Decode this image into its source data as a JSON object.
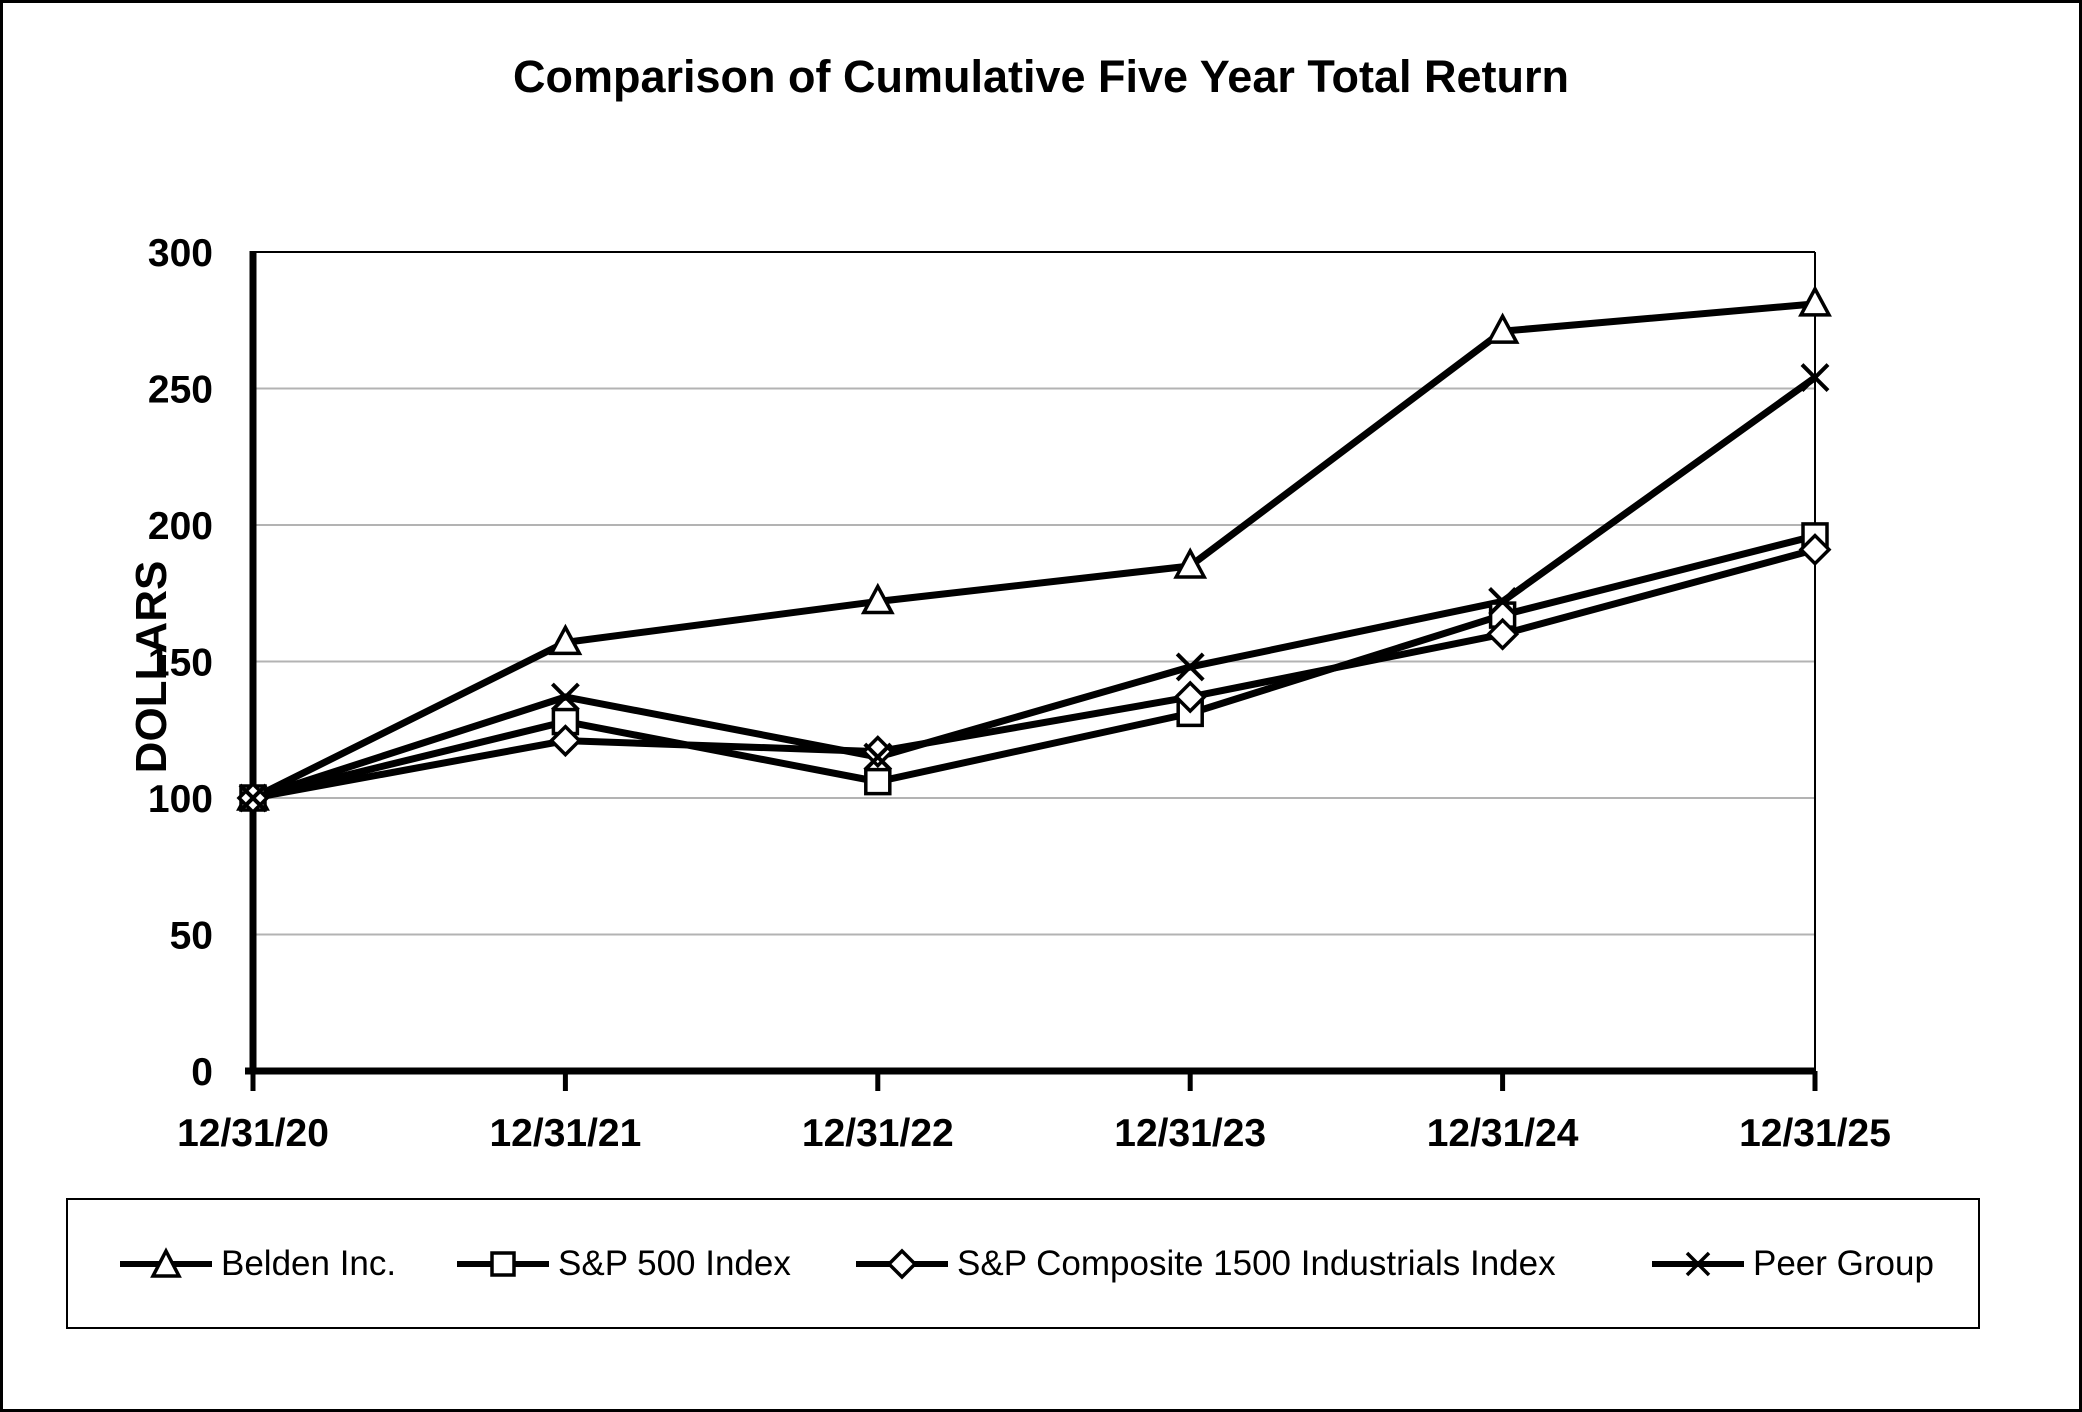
{
  "chart_data": {
    "type": "line",
    "title": "Comparison of Cumulative Five Year Total Return",
    "ylabel": "DOLLARS",
    "xlabel": "",
    "categories": [
      "12/31/20",
      "12/31/21",
      "12/31/22",
      "12/31/23",
      "12/31/24",
      "12/31/25"
    ],
    "series": [
      {
        "name": "Belden Inc.",
        "marker": "triangle",
        "values": [
          100,
          157,
          172,
          185,
          271,
          281
        ]
      },
      {
        "name": "S&P 500 Index",
        "marker": "square",
        "values": [
          100,
          128,
          106,
          131,
          167,
          196
        ]
      },
      {
        "name": "S&P Composite 1500 Industrials Index",
        "marker": "diamond",
        "values": [
          100,
          121,
          117,
          137,
          160,
          191
        ]
      },
      {
        "name": "Peer Group",
        "marker": "x",
        "values": [
          100,
          137,
          115,
          148,
          172,
          254
        ]
      }
    ],
    "ylim": [
      0,
      300
    ],
    "ytick_step": 50,
    "grid": true,
    "legend_position": "bottom",
    "colors": {
      "line": "#000000",
      "grid": "#b3b3b3",
      "background": "#ffffff"
    }
  }
}
